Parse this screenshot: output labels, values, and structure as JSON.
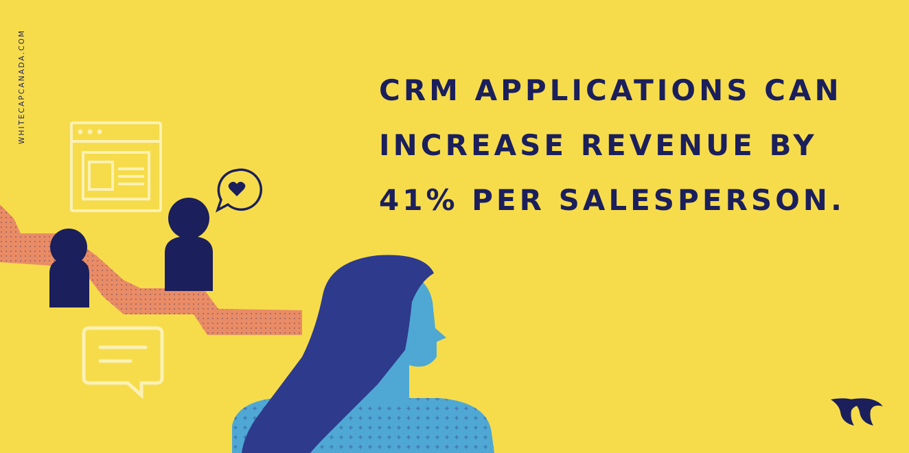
{
  "brand": {
    "site_url": "WHITECAPCANADA.COM",
    "logo_icon": "whitecap-wave-logo-icon"
  },
  "headline": {
    "lines": [
      "CRM APPLICATIONS CAN",
      "INCREASE REVENUE BY",
      "41% PER SALESPERSON."
    ]
  },
  "colors": {
    "background": "#F6DC4B",
    "navy": "#1B1F5C",
    "path_orange": "#E98C66",
    "hair_blue": "#2E3A8C",
    "skin_blue": "#4FA8D4",
    "outline_cream": "#FBF1B4"
  },
  "icons": [
    "browser-window-icon",
    "heart-speech-bubble-icon",
    "chat-bubble-icon",
    "person-silhouette-icon",
    "woman-profile-illustration"
  ]
}
